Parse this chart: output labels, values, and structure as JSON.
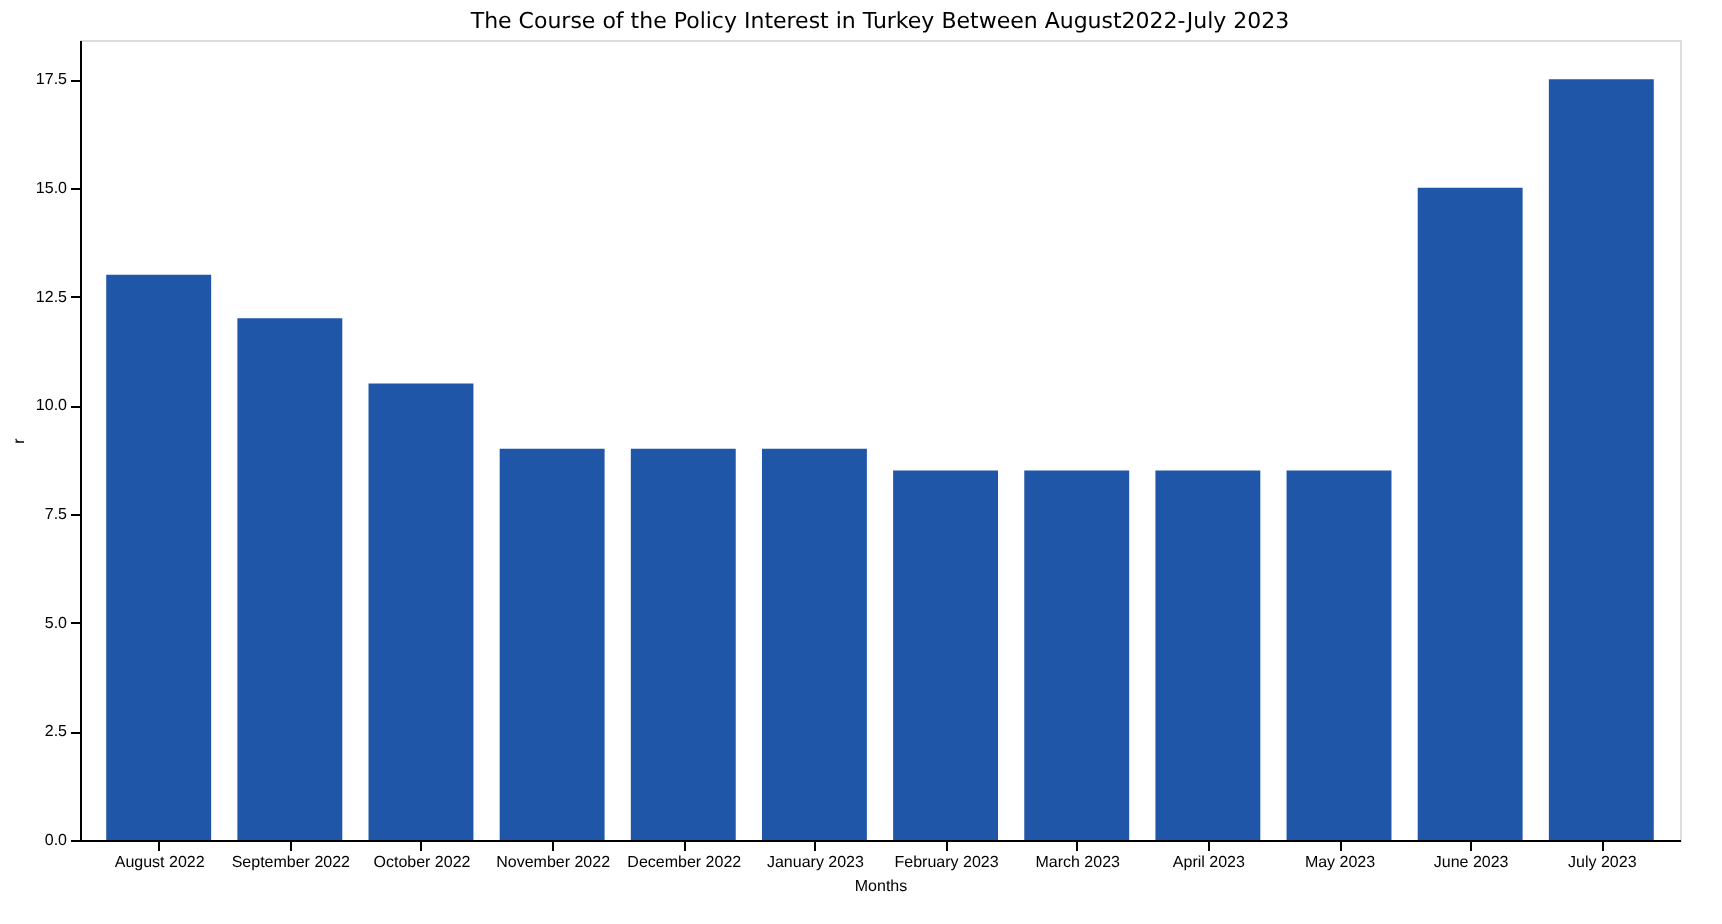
{
  "chart_data": {
    "type": "bar",
    "title": "The Course of the Policy Interest in Turkey Between August2022-July 2023",
    "xlabel": "Months",
    "ylabel": "r",
    "categories": [
      "August 2022",
      "September 2022",
      "October 2022",
      "November 2022",
      "December 2022",
      "January 2023",
      "February 2023",
      "March 2023",
      "April 2023",
      "May 2023",
      "June 2023",
      "July 2023"
    ],
    "values": [
      13,
      12,
      10.5,
      9,
      9,
      9,
      8.5,
      8.5,
      8.5,
      8.5,
      15,
      17.5
    ],
    "color": "#1f56a8",
    "ylim": [
      0,
      18.4
    ],
    "yticks": [
      {
        "value": 0,
        "label": "0.0"
      },
      2.5,
      {
        "value": 5,
        "label": "5.0"
      },
      7.5,
      {
        "value": 10,
        "label": "10.0"
      },
      12.5,
      {
        "value": 15,
        "label": "15.0"
      },
      17.5
    ],
    "grid": false
  }
}
